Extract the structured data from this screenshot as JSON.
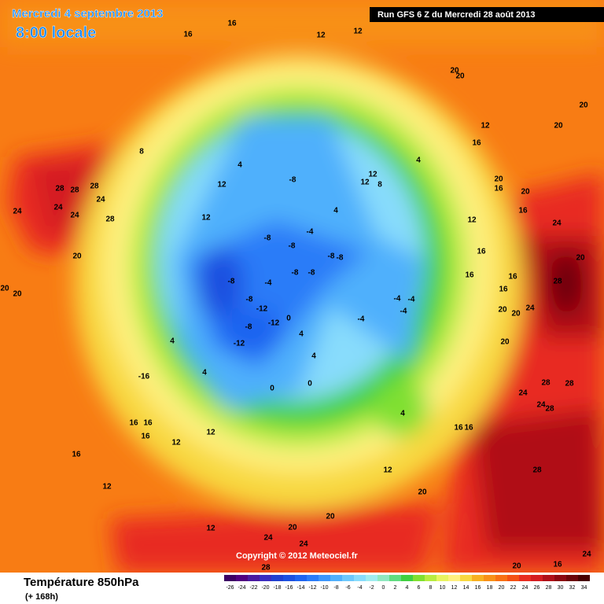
{
  "header": {
    "date": "Mercredi 4 septembre 2013",
    "time": "8:00 locale",
    "run": "Run GFS 6 Z du Mercredi 28 août 2013"
  },
  "map": {
    "copyright": "Copyright © 2012 Meteociel.fr",
    "contour_labels": [
      16,
      16,
      12,
      12,
      20,
      20,
      20,
      20,
      12,
      16,
      8,
      28,
      28,
      28,
      24,
      24,
      24,
      24,
      28,
      20,
      20,
      20,
      12,
      12,
      4,
      -8,
      12,
      12,
      8,
      4,
      -8,
      -8,
      -4,
      -8,
      -8,
      -8,
      -8,
      -8,
      -4,
      -12,
      -8,
      -8,
      -12,
      -12,
      0,
      4,
      4,
      0,
      0,
      4,
      -4,
      -4,
      -4,
      -4,
      4,
      4,
      -16,
      16,
      16,
      16,
      12,
      12,
      16,
      12,
      12,
      12,
      20,
      20,
      24,
      24,
      20,
      28,
      20,
      16,
      24,
      28,
      24,
      20,
      20,
      20,
      24,
      28,
      28,
      24,
      28,
      28,
      16,
      16,
      16,
      16,
      16,
      20,
      16,
      16,
      16,
      12,
      20,
      24,
      20,
      4
    ]
  },
  "footer": {
    "title": "Température 850hPa",
    "lead": "(+ 168h)",
    "scale": {
      "ticks": [
        -26,
        -24,
        -22,
        -20,
        -18,
        -16,
        -14,
        -12,
        -10,
        -8,
        -6,
        -4,
        -2,
        0,
        2,
        4,
        6,
        8,
        10,
        12,
        14,
        16,
        18,
        20,
        22,
        24,
        26,
        28,
        30,
        32,
        34
      ],
      "colors": [
        "#3c0064",
        "#500080",
        "#4a1aa0",
        "#3a2cc0",
        "#2040d0",
        "#1c50e0",
        "#1e64f0",
        "#2a7cf8",
        "#3c96fc",
        "#50b0fc",
        "#6cc8fc",
        "#88dcfc",
        "#a0ecf0",
        "#90e8c0",
        "#60dc80",
        "#40d040",
        "#80e030",
        "#b8ec40",
        "#e8f460",
        "#fff080",
        "#f8d840",
        "#f8b020",
        "#f89018",
        "#f87014",
        "#f45014",
        "#e82c20",
        "#d41c20",
        "#b01018",
        "#8c0810",
        "#6c0408",
        "#480000"
      ]
    }
  }
}
